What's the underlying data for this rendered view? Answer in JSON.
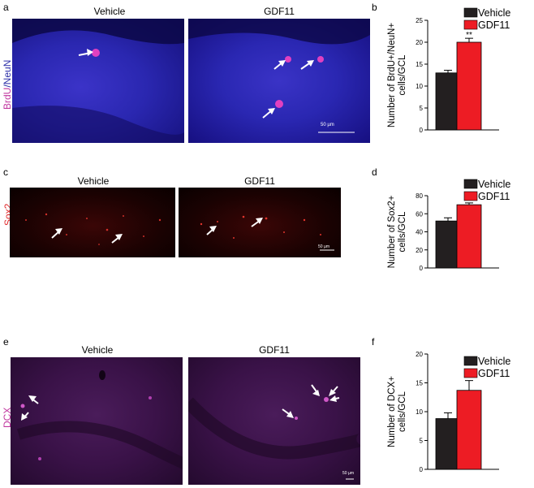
{
  "panels": {
    "a": {
      "label": "a",
      "stain_a": "BrdU",
      "stain_sep": "/",
      "stain_b": "NeuN",
      "conditions": [
        "Vehicle",
        "GDF11"
      ],
      "scalebar": "50 µm",
      "colors": {
        "stain_a": "#c0369f",
        "stain_b": "#2c2fa8"
      }
    },
    "c": {
      "label": "c",
      "stain": "Sox2",
      "conditions": [
        "Vehicle",
        "GDF11"
      ],
      "scalebar": "50 µm",
      "colors": {
        "stain": "#e0282a"
      }
    },
    "e": {
      "label": "e",
      "stain": "DCX",
      "conditions": [
        "Vehicle",
        "GDF11"
      ],
      "scalebar": "50 µm",
      "colors": {
        "stain": "#c0369f"
      }
    },
    "b": {
      "label": "b"
    },
    "d": {
      "label": "d"
    },
    "f": {
      "label": "f"
    }
  },
  "chart_data": [
    {
      "panel": "b",
      "type": "bar",
      "categories": [
        "Vehicle",
        "GDF11"
      ],
      "values": [
        13,
        20
      ],
      "errors": [
        0.6,
        0.9
      ],
      "significance": [
        "",
        "**"
      ],
      "ylabel": "Number of BrdU+/NeuN+ cells/GCL",
      "ylim": [
        0,
        25
      ],
      "yticks": [
        0,
        5,
        10,
        15,
        20,
        25
      ],
      "legend": [
        "Vehicle",
        "GDF11"
      ],
      "legend_position": "top-right",
      "colors": [
        "#231f20",
        "#ed1c24"
      ]
    },
    {
      "panel": "d",
      "type": "bar",
      "categories": [
        "Vehicle",
        "GDF11"
      ],
      "values": [
        52,
        70
      ],
      "errors": [
        3.5,
        2
      ],
      "significance": [
        "",
        "***"
      ],
      "ylabel": "Number of Sox2+ cells/GCL",
      "ylim": [
        0,
        80
      ],
      "yticks": [
        0,
        20,
        40,
        60,
        80
      ],
      "legend": [
        "Vehicle",
        "GDF11"
      ],
      "legend_position": "top-right",
      "colors": [
        "#231f20",
        "#ed1c24"
      ]
    },
    {
      "panel": "f",
      "type": "bar",
      "categories": [
        "Vehicle",
        "GDF11"
      ],
      "values": [
        8.8,
        13.7
      ],
      "errors": [
        1,
        1.7
      ],
      "significance": [
        "",
        "*"
      ],
      "ylabel": "Number of DCX+ cells/GCL",
      "ylim": [
        0,
        20
      ],
      "yticks": [
        0,
        5,
        10,
        15,
        20
      ],
      "legend": [
        "Vehicle",
        "GDF11"
      ],
      "legend_position": "top-right",
      "colors": [
        "#231f20",
        "#ed1c24"
      ]
    }
  ]
}
